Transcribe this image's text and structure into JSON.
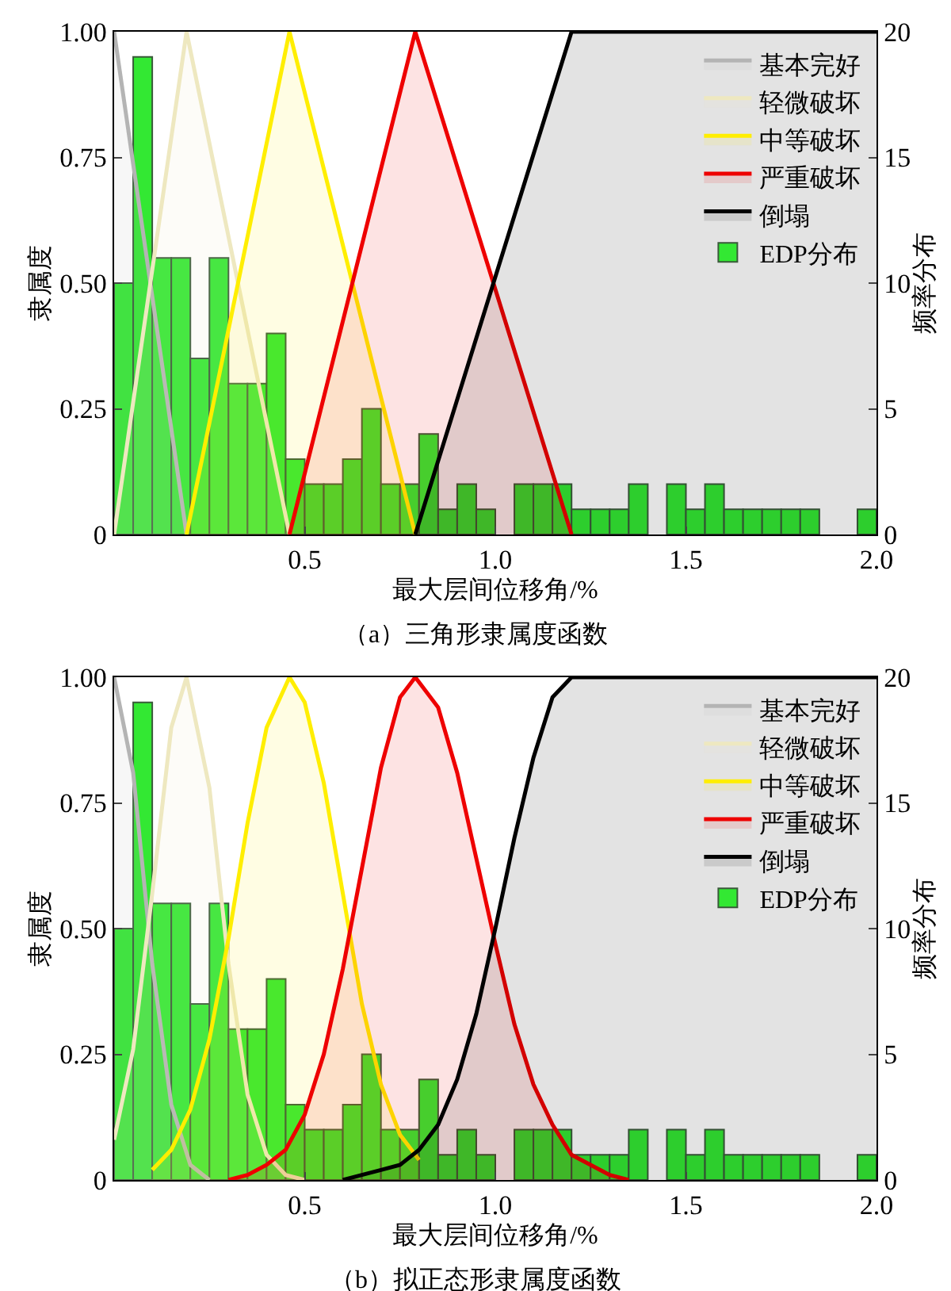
{
  "chart_data": [
    {
      "type": "area",
      "title": "（a）三角形隶属度函数",
      "xlabel": "最大层间位移角/%",
      "ylabel": "隶属度",
      "y2label": "频率分布",
      "legend": "top right",
      "xlim": [
        0,
        2
      ],
      "xticks": [
        {
          "value": 0,
          "label": null
        },
        {
          "value": 0.5,
          "label": "0.5"
        },
        {
          "value": 1,
          "label": "1.0"
        },
        {
          "value": 1.5,
          "label": "1.5"
        },
        {
          "value": 2,
          "label": "2.0"
        }
      ],
      "ylim": [
        0,
        1
      ],
      "yticks": [
        {
          "value": 0,
          "label": "0"
        },
        {
          "value": 0.25,
          "label": "0.25"
        },
        {
          "value": 0.5,
          "label": "0.50"
        },
        {
          "value": 0.75,
          "label": "0.75"
        },
        {
          "value": 1,
          "label": "1.00"
        }
      ],
      "y2lim": [
        0,
        20
      ],
      "y2ticks": [
        0,
        5,
        10,
        15,
        20
      ],
      "series": [
        {
          "name": "基本完好",
          "color": "#b4b4b4",
          "x": [
            0,
            0.19
          ],
          "values": [
            1,
            0
          ]
        },
        {
          "name": "轻微破坏",
          "color": "#eee8c0",
          "x": [
            0,
            0.19,
            0.46
          ],
          "values": [
            0,
            1,
            0
          ]
        },
        {
          "name": "中等破坏",
          "color": "#ffee00",
          "x": [
            0.19,
            0.46,
            0.79
          ],
          "values": [
            0,
            1,
            0
          ]
        },
        {
          "name": "严重破坏",
          "color": "#ee0000",
          "x": [
            0.46,
            0.79,
            1.2
          ],
          "values": [
            0,
            1,
            0
          ]
        },
        {
          "name": "倒塌",
          "color": "#000000",
          "x": [
            0.79,
            1.2,
            2
          ],
          "values": [
            0,
            1,
            1
          ]
        },
        {
          "name": "EDP分布",
          "color": "#33e833",
          "type": "histogram",
          "axis": "y2",
          "bins": [
            0,
            0.05,
            0.1,
            0.15,
            0.2,
            0.25,
            0.3,
            0.35,
            0.4,
            0.45,
            0.5,
            0.55,
            0.6,
            0.65,
            0.7,
            0.75,
            0.8,
            0.85,
            0.9,
            0.95,
            1,
            1.05,
            1.1,
            1.15,
            1.2,
            1.25,
            1.3,
            1.35,
            1.4,
            1.45,
            1.5,
            1.55,
            1.6,
            1.65,
            1.7,
            1.75,
            1.8,
            1.85,
            1.9,
            1.95,
            2
          ],
          "values": [
            10,
            19,
            11,
            11,
            7,
            11,
            6,
            6,
            8,
            3,
            2,
            2,
            3,
            5,
            2,
            2,
            4,
            1,
            2,
            1,
            0,
            2,
            2,
            2,
            1,
            1,
            1,
            2,
            0,
            2,
            1,
            2,
            1,
            1,
            1,
            1,
            1,
            0,
            0,
            1
          ]
        }
      ]
    },
    {
      "type": "area",
      "title": "（b）拟正态形隶属度函数",
      "xlabel": "最大层间位移角/%",
      "ylabel": "隶属度",
      "y2label": "频率分布",
      "legend": "top right",
      "xlim": [
        0,
        2
      ],
      "xticks": [
        {
          "value": 0,
          "label": null
        },
        {
          "value": 0.5,
          "label": "0.5"
        },
        {
          "value": 1,
          "label": "1.0"
        },
        {
          "value": 1.5,
          "label": "1.5"
        },
        {
          "value": 2,
          "label": "2.0"
        }
      ],
      "ylim": [
        0,
        1
      ],
      "yticks": [
        {
          "value": 0,
          "label": "0"
        },
        {
          "value": 0.25,
          "label": "0.25"
        },
        {
          "value": 0.5,
          "label": "0.50"
        },
        {
          "value": 0.75,
          "label": "0.75"
        },
        {
          "value": 1,
          "label": "1.00"
        }
      ],
      "y2lim": [
        0,
        20
      ],
      "y2ticks": [
        0,
        5,
        10,
        15,
        20
      ],
      "series": [
        {
          "name": "基本完好",
          "color": "#b4b4b4",
          "x": [
            0,
            0.05,
            0.1,
            0.15,
            0.2,
            0.25
          ],
          "values": [
            1,
            0.81,
            0.43,
            0.15,
            0.03,
            0
          ]
        },
        {
          "name": "轻微破坏",
          "color": "#eee8c0",
          "x": [
            0,
            0.05,
            0.1,
            0.15,
            0.19,
            0.25,
            0.3,
            0.35,
            0.4,
            0.45,
            0.5
          ],
          "values": [
            0.08,
            0.26,
            0.57,
            0.9,
            1,
            0.78,
            0.43,
            0.17,
            0.05,
            0.01,
            0
          ]
        },
        {
          "name": "中等破坏",
          "color": "#ffee00",
          "x": [
            0.1,
            0.15,
            0.2,
            0.25,
            0.3,
            0.35,
            0.4,
            0.46,
            0.5,
            0.55,
            0.6,
            0.65,
            0.7,
            0.75,
            0.8
          ],
          "values": [
            0.02,
            0.06,
            0.14,
            0.28,
            0.48,
            0.71,
            0.9,
            1,
            0.95,
            0.79,
            0.57,
            0.35,
            0.19,
            0.09,
            0.04
          ]
        },
        {
          "name": "严重破坏",
          "color": "#ee0000",
          "x": [
            0.3,
            0.35,
            0.4,
            0.45,
            0.5,
            0.55,
            0.6,
            0.65,
            0.7,
            0.75,
            0.79,
            0.85,
            0.9,
            0.95,
            1,
            1.05,
            1.1,
            1.15,
            1.2,
            1.25,
            1.3,
            1.35
          ],
          "values": [
            0,
            0.01,
            0.03,
            0.06,
            0.13,
            0.25,
            0.42,
            0.62,
            0.82,
            0.96,
            1,
            0.94,
            0.81,
            0.64,
            0.47,
            0.31,
            0.19,
            0.11,
            0.05,
            0.03,
            0.01,
            0
          ]
        },
        {
          "name": "倒塌",
          "color": "#000000",
          "x": [
            0.6,
            0.65,
            0.7,
            0.75,
            0.8,
            0.85,
            0.9,
            0.95,
            1,
            1.05,
            1.1,
            1.15,
            1.2,
            2
          ],
          "values": [
            0,
            0.01,
            0.02,
            0.03,
            0.06,
            0.11,
            0.2,
            0.33,
            0.5,
            0.68,
            0.84,
            0.96,
            1,
            1
          ]
        },
        {
          "name": "EDP分布",
          "color": "#33e833",
          "type": "histogram",
          "axis": "y2",
          "bins": [
            0,
            0.05,
            0.1,
            0.15,
            0.2,
            0.25,
            0.3,
            0.35,
            0.4,
            0.45,
            0.5,
            0.55,
            0.6,
            0.65,
            0.7,
            0.75,
            0.8,
            0.85,
            0.9,
            0.95,
            1,
            1.05,
            1.1,
            1.15,
            1.2,
            1.25,
            1.3,
            1.35,
            1.4,
            1.45,
            1.5,
            1.55,
            1.6,
            1.65,
            1.7,
            1.75,
            1.8,
            1.85,
            1.9,
            1.95,
            2
          ],
          "values": [
            10,
            19,
            11,
            11,
            7,
            11,
            6,
            6,
            8,
            3,
            2,
            2,
            3,
            5,
            2,
            2,
            4,
            1,
            2,
            1,
            0,
            2,
            2,
            2,
            1,
            1,
            1,
            2,
            0,
            2,
            1,
            2,
            1,
            1,
            1,
            1,
            1,
            0,
            0,
            1
          ]
        }
      ]
    }
  ]
}
